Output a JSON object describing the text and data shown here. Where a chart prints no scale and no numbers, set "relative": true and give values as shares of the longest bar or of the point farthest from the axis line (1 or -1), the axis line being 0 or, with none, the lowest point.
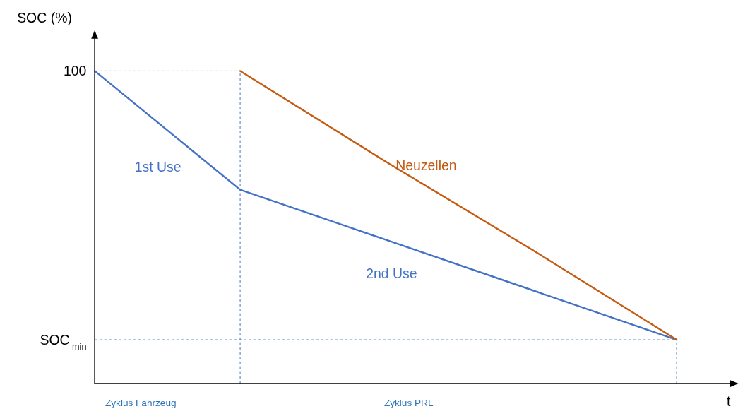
{
  "chart_data": {
    "type": "line",
    "relative": true,
    "ylabel": "SOC (%)",
    "xlabel": "t",
    "categories": [
      null,
      null,
      null,
      null,
      null
    ],
    "marker": "none",
    "series": [
      {
        "color": "#4472c4",
        "values": [
          1,
          0.62,
          0.46,
          0.3,
          0.14
        ]
      },
      {
        "name": "Neuzellen",
        "color": "#c55a11",
        "values": [
          null,
          1,
          0.71,
          0.43,
          0.14
        ]
      }
    ],
    "ref_lines": [
      {
        "axis": "y",
        "value": 1,
        "label": "100",
        "line_style": "dashed",
        "color": "#4472c4"
      },
      {
        "axis": "y",
        "value": 0.14,
        "label": "SOC$_{min}$",
        "line_style": "dashed",
        "color": "#4472c4"
      }
    ],
    "annotations": [
      "1st Use",
      "2nd Use",
      "Zyklus Fahrzeug",
      "Zyklus PRL"
    ]
  }
}
